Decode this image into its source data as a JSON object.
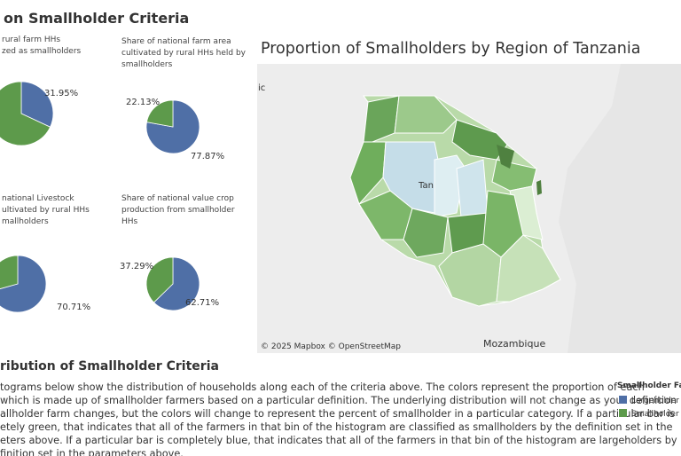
{
  "dashboard": {
    "title": "on Smallholder Criteria",
    "pies": [
      {
        "caption": [
          "rural farm HHs",
          "zed as smallholders"
        ],
        "values": [
          31.95,
          68.05
        ],
        "value_labels": [
          "31.95%",
          null
        ]
      },
      {
        "caption": [
          "Share of national farm area",
          "cultivated by rural HHs held by",
          "smallholders"
        ],
        "values": [
          77.87,
          22.13
        ],
        "value_labels": [
          "77.87%",
          "22.13%"
        ]
      },
      {
        "caption": [
          "national Livestock",
          "ultivated by rural HHs",
          "mallholders"
        ],
        "values": [
          70.71,
          29.29
        ],
        "value_labels": [
          "70.71%",
          null
        ]
      },
      {
        "caption": [
          "Share of national value crop",
          "production from smallholder",
          "HHs"
        ],
        "values": [
          62.71,
          37.29
        ],
        "value_labels": [
          "62.71%",
          "37.29%"
        ]
      }
    ],
    "map": {
      "title": "Proportion of Smallholders by Region of Tanzania",
      "attribution": "© 2025 Mapbox © OpenStreetMap",
      "place_labels": [
        "ic",
        "Tan",
        "Mozambique"
      ]
    },
    "section": {
      "title": "ribution of Smallholder Criteria",
      "paragraph": [
        "tograms below show the distribution of households along each of the criteria above. The colors represent the proportion of each",
        " which is made up of smallholder farmers based on a particular definition. The underlying distribution will not change as your definition",
        "allholder farm changes, but the colors will change to represent the percent of smallholder in a particular category. If a particular bar is",
        "etely green, that indicates that all of the farmers in that bin of the histogram are classified as smallholders by the definition set in the",
        "eters above. If a particular bar is completely blue, that indicates that all of the farmers in that bin of the histogram are largeholders by",
        "finition set in the parameters above."
      ]
    },
    "legend": {
      "title": "Smallholder Farm",
      "items": [
        {
          "name": "Largeholder",
          "color": "#4f6fa6"
        },
        {
          "name": "Smallholder",
          "color": "#5d9a4b"
        }
      ]
    }
  }
}
